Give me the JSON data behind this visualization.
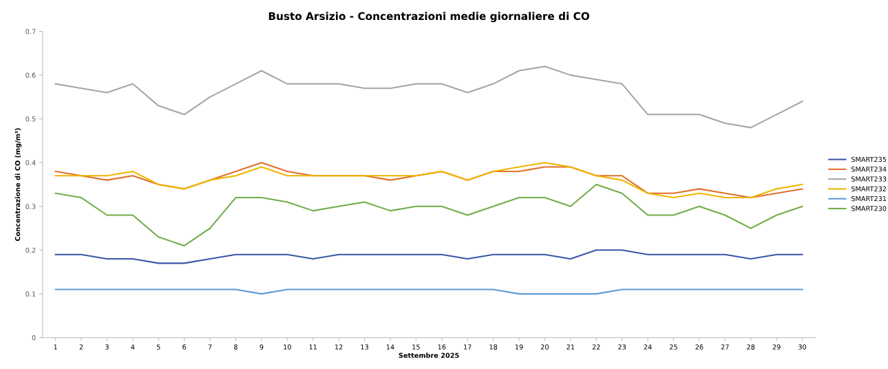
{
  "chart_data": {
    "type": "line",
    "title": "Busto Arsizio - Concentrazioni medie giornaliere di CO",
    "xlabel": "Settembre 2025",
    "ylabel": "Concentrazione di CO (mg/m³)",
    "categories": [
      "1",
      "2",
      "3",
      "4",
      "5",
      "6",
      "7",
      "8",
      "9",
      "10",
      "11",
      "12",
      "13",
      "14",
      "15",
      "16",
      "17",
      "18",
      "19",
      "20",
      "21",
      "22",
      "23",
      "24",
      "25",
      "26",
      "27",
      "28",
      "29",
      "30"
    ],
    "series": [
      {
        "name": "SMART235",
        "color": "#3a56a8",
        "values": [
          0.19,
          0.19,
          0.18,
          0.18,
          0.17,
          0.17,
          0.18,
          0.19,
          0.19,
          0.19,
          0.18,
          0.19,
          0.19,
          0.19,
          0.19,
          0.19,
          0.18,
          0.19,
          0.19,
          0.19,
          0.18,
          0.2,
          0.2,
          0.19,
          0.19,
          0.19,
          0.19,
          0.18,
          0.19,
          0.19
        ]
      },
      {
        "name": "SMART234",
        "color": "#e0702a",
        "values": [
          0.38,
          0.37,
          0.36,
          0.37,
          0.35,
          0.34,
          0.36,
          0.38,
          0.4,
          0.38,
          0.37,
          0.37,
          0.37,
          0.36,
          0.37,
          0.38,
          0.36,
          0.38,
          0.38,
          0.39,
          0.39,
          0.37,
          0.37,
          0.33,
          0.33,
          0.34,
          0.33,
          0.32,
          0.33,
          0.34
        ]
      },
      {
        "name": "SMART233",
        "color": "#a5a5a5",
        "values": [
          0.58,
          0.57,
          0.56,
          0.58,
          0.53,
          0.51,
          0.55,
          0.58,
          0.61,
          0.58,
          0.58,
          0.58,
          0.57,
          0.57,
          0.58,
          0.58,
          0.56,
          0.58,
          0.61,
          0.62,
          0.6,
          0.59,
          0.58,
          0.51,
          0.51,
          0.51,
          0.49,
          0.48,
          0.51,
          0.54
        ]
      },
      {
        "name": "SMART232",
        "color": "#f0b400",
        "values": [
          0.37,
          0.37,
          0.37,
          0.38,
          0.35,
          0.34,
          0.36,
          0.37,
          0.39,
          0.37,
          0.37,
          0.37,
          0.37,
          0.37,
          0.37,
          0.38,
          0.36,
          0.38,
          0.39,
          0.4,
          0.39,
          0.37,
          0.36,
          0.33,
          0.32,
          0.33,
          0.32,
          0.32,
          0.34,
          0.35
        ]
      },
      {
        "name": "SMART231",
        "color": "#5b9bd5",
        "values": [
          0.11,
          0.11,
          0.11,
          0.11,
          0.11,
          0.11,
          0.11,
          0.11,
          0.1,
          0.11,
          0.11,
          0.11,
          0.11,
          0.11,
          0.11,
          0.11,
          0.11,
          0.11,
          0.1,
          0.1,
          0.1,
          0.1,
          0.11,
          0.11,
          0.11,
          0.11,
          0.11,
          0.11,
          0.11,
          0.11
        ]
      },
      {
        "name": "SMART230",
        "color": "#70ad47",
        "values": [
          0.33,
          0.32,
          0.28,
          0.28,
          0.23,
          0.21,
          0.25,
          0.32,
          0.32,
          0.31,
          0.29,
          0.3,
          0.31,
          0.29,
          0.3,
          0.3,
          0.28,
          0.3,
          0.32,
          0.32,
          0.3,
          0.35,
          0.33,
          0.28,
          0.28,
          0.3,
          0.28,
          0.25,
          0.28,
          0.3
        ]
      }
    ],
    "ylim": [
      0,
      0.7
    ],
    "yticks": [
      0,
      0.1,
      0.2,
      0.3,
      0.4,
      0.5,
      0.6,
      0.7
    ],
    "grid": false,
    "legend": "right",
    "marker": "none",
    "line_style": "solid"
  }
}
